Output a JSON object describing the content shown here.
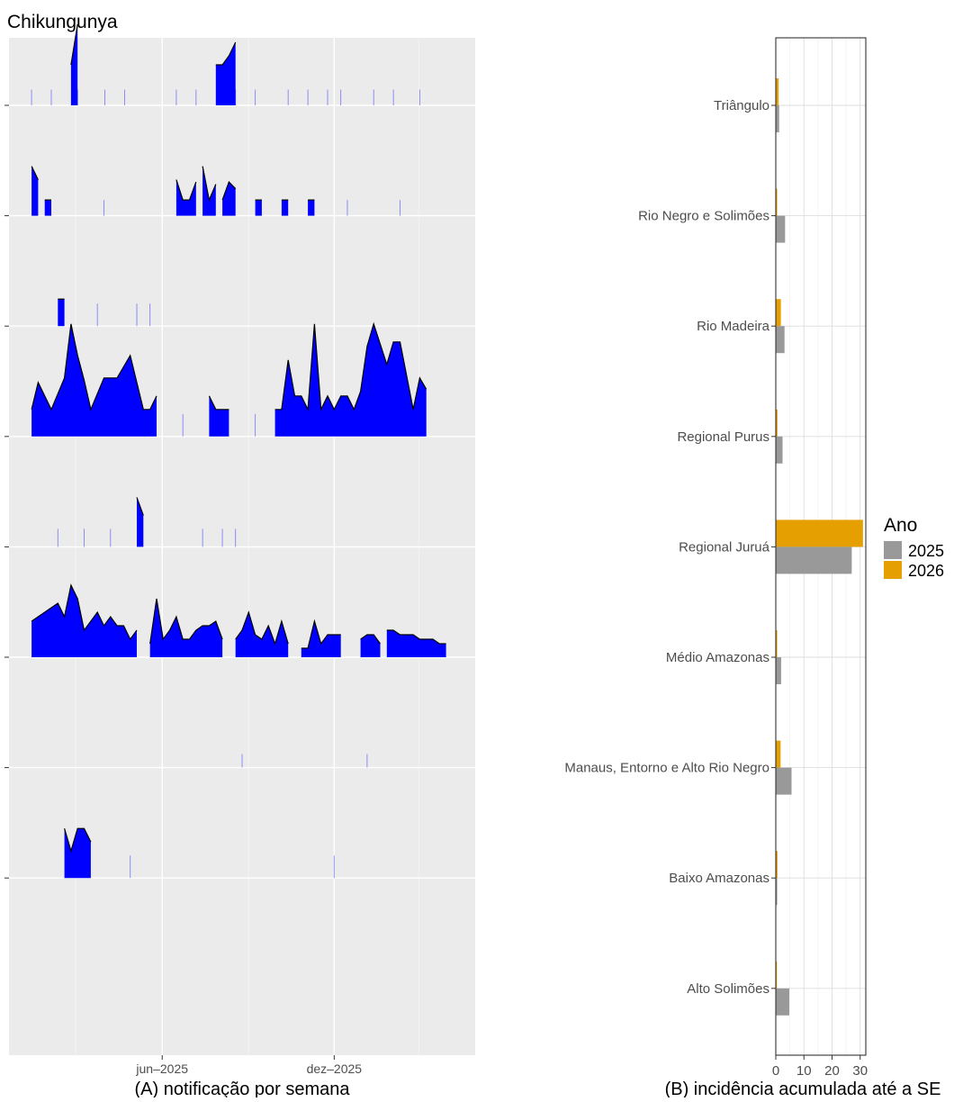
{
  "title": "Chikungunya",
  "chart_data": [
    {
      "panel": "A",
      "type": "area",
      "caption": "(A) notificação por semana",
      "x_axis": {
        "ticks": [
          "jun–2025",
          "dez–2025"
        ],
        "tick_dates": [
          "2025-06-01",
          "2025-12-01"
        ],
        "range": [
          "2024-12-20",
          "2026-04-30"
        ]
      },
      "ylabel": "",
      "grid": true,
      "colors": {
        "fill": "#0000ff",
        "stroke": "#000000",
        "panel_bg": "#ebebeb"
      },
      "rows": [
        {
          "level": 0.35,
          "segments": [
            {
              "dates": [
                "2025-02-24",
                "2025-03-03"
              ],
              "values": [
                0.9,
                1.8
              ]
            },
            {
              "dates": [
                "2025-07-28",
                "2025-08-04",
                "2025-08-11",
                "2025-08-18"
              ],
              "values": [
                0.9,
                0.9,
                1.1,
                1.4
              ]
            }
          ],
          "spikes": [
            "2025-01-13",
            "2025-02-03",
            "2025-03-03",
            "2025-04-01",
            "2025-04-22",
            "2025-06-16",
            "2025-07-07",
            "2025-08-04",
            "2025-08-18",
            "2025-09-08",
            "2025-10-13",
            "2025-11-03",
            "2025-11-24",
            "2025-12-08",
            "2026-01-12",
            "2026-02-02",
            "2026-03-02"
          ]
        },
        {
          "level": 0.35,
          "segments": [
            {
              "dates": [
                "2025-01-13",
                "2025-01-20"
              ],
              "values": [
                1.1,
                0.8
              ]
            },
            {
              "dates": [
                "2025-01-27",
                "2025-02-03"
              ],
              "values": [
                0.35,
                0.35
              ]
            },
            {
              "dates": [
                "2025-06-16",
                "2025-06-23",
                "2025-06-30",
                "2025-07-07"
              ],
              "values": [
                0.8,
                0.35,
                0.35,
                0.75
              ]
            },
            {
              "dates": [
                "2025-07-14",
                "2025-07-21",
                "2025-07-28"
              ],
              "values": [
                1.1,
                0.35,
                0.7
              ]
            },
            {
              "dates": [
                "2025-08-04",
                "2025-08-11",
                "2025-08-18"
              ],
              "values": [
                0.35,
                0.75,
                0.6
              ]
            },
            {
              "dates": [
                "2025-09-08",
                "2025-09-15"
              ],
              "values": [
                0.35,
                0.35
              ]
            },
            {
              "dates": [
                "2025-10-06",
                "2025-10-13"
              ],
              "values": [
                0.35,
                0.35
              ]
            },
            {
              "dates": [
                "2025-11-03",
                "2025-11-10"
              ],
              "values": [
                0.35,
                0.35
              ]
            }
          ],
          "spikes": [
            "2025-03-31",
            "2025-12-15",
            "2026-02-09"
          ]
        },
        {
          "level": 0.5,
          "segments": [
            {
              "dates": [
                "2025-02-10",
                "2025-02-17"
              ],
              "values": [
                0.6,
                0.6
              ]
            }
          ],
          "spikes": [
            "2025-03-24",
            "2025-05-05",
            "2025-05-19"
          ]
        },
        {
          "level": 0.5,
          "segments": [
            {
              "dates": [
                "2025-01-13",
                "2025-01-20",
                "2025-02-03",
                "2025-02-17",
                "2025-02-24",
                "2025-03-03",
                "2025-03-10",
                "2025-03-17",
                "2025-03-31",
                "2025-04-14",
                "2025-04-28",
                "2025-05-12",
                "2025-05-19",
                "2025-05-26"
              ],
              "values": [
                0.6,
                1.2,
                0.6,
                1.3,
                2.5,
                1.8,
                1.25,
                0.6,
                1.3,
                1.3,
                1.8,
                0.6,
                0.6,
                0.9
              ]
            },
            {
              "dates": [
                "2025-07-21",
                "2025-07-28",
                "2025-08-04",
                "2025-08-11"
              ],
              "values": [
                0.9,
                0.6,
                0.6,
                0.6
              ]
            },
            {
              "dates": [
                "2025-09-29",
                "2025-10-06",
                "2025-10-13",
                "2025-10-20",
                "2025-10-27",
                "2025-11-03",
                "2025-11-10",
                "2025-11-17",
                "2025-11-24",
                "2025-12-01",
                "2025-12-08",
                "2025-12-15",
                "2025-12-22",
                "2025-12-29",
                "2026-01-05",
                "2026-01-12",
                "2026-01-26",
                "2026-02-02",
                "2026-02-09",
                "2026-02-23",
                "2026-03-02",
                "2026-03-09"
              ],
              "values": [
                0.6,
                0.6,
                1.7,
                0.9,
                0.9,
                0.6,
                2.5,
                0.6,
                0.9,
                0.6,
                0.9,
                0.9,
                0.6,
                1.0,
                2.0,
                2.5,
                1.6,
                2.1,
                2.1,
                0.6,
                1.3,
                1.05
              ]
            }
          ],
          "spikes": [
            "2025-06-23",
            "2025-09-08"
          ]
        },
        {
          "level": 0.4,
          "segments": [
            {
              "dates": [
                "2025-05-05",
                "2025-05-12"
              ],
              "values": [
                1.1,
                0.7
              ]
            }
          ],
          "spikes": [
            "2025-02-10",
            "2025-03-10",
            "2025-04-07",
            "2025-07-14",
            "2025-08-04",
            "2025-08-18"
          ]
        },
        {
          "level": 0.15,
          "segments": [
            {
              "dates": [
                "2025-01-13",
                "2025-01-20",
                "2025-01-27",
                "2025-02-03",
                "2025-02-10",
                "2025-02-17",
                "2025-02-24",
                "2025-03-03",
                "2025-03-10",
                "2025-03-17",
                "2025-03-24",
                "2025-03-31",
                "2025-04-07",
                "2025-04-14",
                "2025-04-21",
                "2025-04-28",
                "2025-05-05"
              ],
              "values": [
                0.8,
                0.9,
                1.0,
                1.1,
                1.2,
                0.9,
                1.6,
                1.3,
                0.6,
                0.8,
                1.0,
                0.7,
                0.9,
                0.7,
                0.7,
                0.4,
                0.6
              ]
            },
            {
              "dates": [
                "2025-05-19",
                "2025-05-26",
                "2025-06-02",
                "2025-06-09",
                "2025-06-16",
                "2025-06-23",
                "2025-06-30",
                "2025-07-07",
                "2025-07-14",
                "2025-07-21",
                "2025-07-28",
                "2025-08-04"
              ],
              "values": [
                0.3,
                1.3,
                0.4,
                0.6,
                0.9,
                0.4,
                0.4,
                0.6,
                0.7,
                0.7,
                0.8,
                0.4
              ]
            },
            {
              "dates": [
                "2025-08-18",
                "2025-08-25",
                "2025-09-01",
                "2025-09-08",
                "2025-09-15",
                "2025-09-22",
                "2025-09-29",
                "2025-10-06",
                "2025-10-13"
              ],
              "values": [
                0.4,
                0.6,
                1.0,
                0.5,
                0.4,
                0.7,
                0.3,
                0.8,
                0.3
              ]
            },
            {
              "dates": [
                "2025-10-27",
                "2025-11-03",
                "2025-11-10",
                "2025-11-17",
                "2025-11-24",
                "2025-12-01",
                "2025-12-08"
              ],
              "values": [
                0.2,
                0.2,
                0.8,
                0.3,
                0.5,
                0.5,
                0.5
              ]
            },
            {
              "dates": [
                "2025-12-29",
                "2026-01-05",
                "2026-01-12",
                "2026-01-19"
              ],
              "values": [
                0.4,
                0.5,
                0.5,
                0.3
              ]
            },
            {
              "dates": [
                "2026-01-26",
                "2026-02-02",
                "2026-02-09",
                "2026-02-16",
                "2026-02-23",
                "2026-03-02",
                "2026-03-09",
                "2026-03-16",
                "2026-03-23",
                "2026-03-30"
              ],
              "values": [
                0.6,
                0.6,
                0.5,
                0.5,
                0.5,
                0.4,
                0.4,
                0.4,
                0.3,
                0.3
              ]
            }
          ],
          "spikes": []
        },
        {
          "level": 0.3,
          "segments": [],
          "spikes": [
            "2025-08-25",
            "2026-01-05"
          ]
        },
        {
          "level": 0.5,
          "segments": [
            {
              "dates": [
                "2025-02-17",
                "2025-02-24",
                "2025-03-03",
                "2025-03-10",
                "2025-03-17"
              ],
              "values": [
                1.1,
                0.6,
                1.1,
                1.1,
                0.8
              ]
            }
          ],
          "spikes": [
            "2025-04-28",
            "2025-12-01"
          ]
        }
      ]
    },
    {
      "panel": "B",
      "type": "bar",
      "orientation": "horizontal",
      "caption": "(B) incidência acumulada até a SE",
      "categories": [
        "Triângulo",
        "Rio Negro e Solimões",
        "Rio Madeira",
        "Regional Purus",
        "Regional Juruá",
        "Médio Amazonas",
        "Manaus, Entorno e Alto Rio Negro",
        "Baixo Amazonas",
        "Alto Solimões"
      ],
      "series": [
        {
          "name": "2025",
          "color": "#999999",
          "values": [
            1.2,
            3.3,
            3.1,
            2.4,
            27.0,
            1.9,
            5.6,
            0.5,
            4.8
          ]
        },
        {
          "name": "2026",
          "color": "#e69f00",
          "values": [
            1.0,
            0.5,
            1.8,
            0.6,
            31.0,
            0.5,
            1.7,
            0.6,
            0.4
          ]
        }
      ],
      "x_ticks": [
        "0",
        "10",
        "20",
        "30"
      ],
      "xlim": [
        0,
        32
      ],
      "xlabel": "",
      "grid": true,
      "legend": {
        "title": "Ano",
        "position": "right",
        "entries": [
          "2025",
          "2026"
        ]
      }
    }
  ]
}
